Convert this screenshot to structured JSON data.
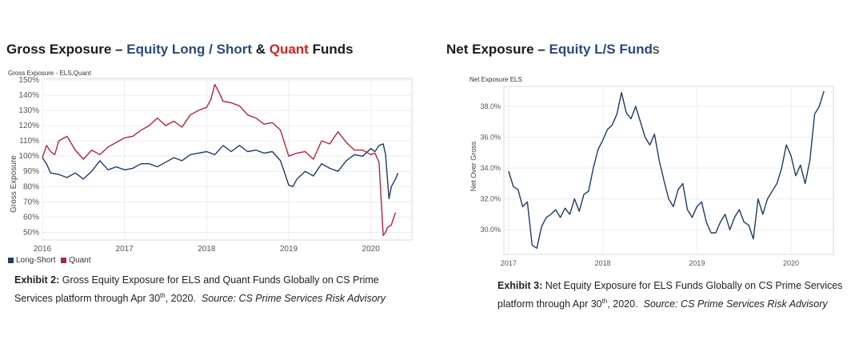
{
  "left": {
    "headline_parts": [
      "Gross Exposure",
      " – ",
      "Equity Long / Short",
      " & ",
      "Quant",
      " Funds"
    ],
    "caption": {
      "label": "Exhibit 2:",
      "text": " Gross Equity Exposure for ELS and Quant Funds Globally on CS Prime Services platform through Apr 30",
      "sup": "th",
      "text2": ", 2020.",
      "source": "Source: CS Prime Services Risk Advisory"
    }
  },
  "right": {
    "headline_parts": [
      "Net Exposure",
      " – ",
      "Equity L/S Fund",
      "s"
    ],
    "caption": {
      "label": "Exhibit 3:",
      "text": " Net Equity Exposure for ELS Funds Globally on CS Prime Services platform through Apr 30",
      "sup": "th",
      "text2": ", 2020.",
      "source": "Source: CS Prime Services Risk Advisory"
    }
  },
  "chart_data": [
    {
      "type": "line",
      "title": "Gross Exposure - ELS,Quant",
      "ylabel": "Gross Exposure",
      "xlabel": "",
      "x_ticks": [
        "2016",
        "2017",
        "2018",
        "2019",
        "2020"
      ],
      "y_ticks": [
        "50%",
        "60%",
        "70%",
        "80%",
        "90%",
        "100%",
        "110%",
        "120%",
        "130%",
        "140%",
        "150%"
      ],
      "xlim": [
        2016.0,
        2020.5
      ],
      "ylim": [
        45,
        151
      ],
      "legend_position": "bottom-left",
      "series": [
        {
          "name": "Long-Short",
          "color": "#1f3b67",
          "x": [
            2016.0,
            2016.05,
            2016.1,
            2016.2,
            2016.3,
            2016.4,
            2016.5,
            2016.6,
            2016.7,
            2016.8,
            2016.9,
            2017.0,
            2017.1,
            2017.2,
            2017.3,
            2017.4,
            2017.5,
            2017.6,
            2017.7,
            2017.8,
            2017.9,
            2018.0,
            2018.1,
            2018.2,
            2018.3,
            2018.4,
            2018.5,
            2018.6,
            2018.7,
            2018.8,
            2018.9,
            2019.0,
            2019.05,
            2019.1,
            2019.2,
            2019.3,
            2019.4,
            2019.5,
            2019.6,
            2019.7,
            2019.8,
            2019.9,
            2020.0,
            2020.05,
            2020.1,
            2020.15,
            2020.18,
            2020.22,
            2020.25,
            2020.3,
            2020.33
          ],
          "y": [
            99,
            95,
            89,
            88,
            86,
            89,
            85,
            90,
            97,
            91,
            93,
            91,
            92,
            95,
            95,
            93,
            96,
            99,
            97,
            101,
            102,
            103,
            101,
            107,
            103,
            107,
            103,
            104,
            102,
            103,
            97,
            81,
            80,
            85,
            90,
            87,
            95,
            92,
            90,
            97,
            101,
            100,
            105,
            103,
            107,
            108,
            101,
            72,
            80,
            85,
            89
          ]
        },
        {
          "name": "Quant",
          "color": "#b3243a",
          "x": [
            2016.0,
            2016.05,
            2016.1,
            2016.15,
            2016.2,
            2016.3,
            2016.4,
            2016.5,
            2016.6,
            2016.7,
            2016.8,
            2016.9,
            2017.0,
            2017.1,
            2017.2,
            2017.3,
            2017.4,
            2017.5,
            2017.6,
            2017.7,
            2017.8,
            2017.9,
            2018.0,
            2018.05,
            2018.1,
            2018.15,
            2018.2,
            2018.3,
            2018.4,
            2018.5,
            2018.6,
            2018.7,
            2018.8,
            2018.9,
            2019.0,
            2019.1,
            2019.2,
            2019.3,
            2019.4,
            2019.5,
            2019.6,
            2019.7,
            2019.8,
            2019.9,
            2020.0,
            2020.05,
            2020.1,
            2020.15,
            2020.18,
            2020.2,
            2020.25,
            2020.3
          ],
          "y": [
            99,
            107,
            103,
            101,
            110,
            113,
            104,
            98,
            104,
            101,
            106,
            109,
            112,
            113,
            117,
            120,
            125,
            120,
            123,
            119,
            127,
            130,
            132,
            137,
            147,
            142,
            136,
            135,
            133,
            127,
            125,
            121,
            122,
            117,
            100,
            102,
            103,
            98,
            110,
            108,
            116,
            109,
            104,
            104,
            101,
            102,
            96,
            48,
            50,
            53,
            55,
            63
          ]
        }
      ]
    },
    {
      "type": "line",
      "title": "Net Exposure ELS",
      "ylabel": "Net Over Gross",
      "xlabel": "",
      "x_ticks": [
        "2017",
        "2018",
        "2019",
        "2020"
      ],
      "y_ticks": [
        "30.0%",
        "32.0%",
        "34.0%",
        "36.0%",
        "38.0%"
      ],
      "xlim": [
        2016.95,
        2020.45
      ],
      "ylim": [
        28.4,
        39.3
      ],
      "series": [
        {
          "name": "",
          "color": "#1f3b67",
          "x": [
            2017.0,
            2017.05,
            2017.1,
            2017.15,
            2017.2,
            2017.25,
            2017.3,
            2017.35,
            2017.4,
            2017.45,
            2017.5,
            2017.55,
            2017.6,
            2017.65,
            2017.7,
            2017.75,
            2017.8,
            2017.85,
            2017.9,
            2017.95,
            2018.0,
            2018.05,
            2018.1,
            2018.15,
            2018.2,
            2018.25,
            2018.3,
            2018.35,
            2018.4,
            2018.45,
            2018.5,
            2018.55,
            2018.6,
            2018.65,
            2018.7,
            2018.75,
            2018.8,
            2018.85,
            2018.9,
            2018.95,
            2019.0,
            2019.05,
            2019.1,
            2019.15,
            2019.2,
            2019.25,
            2019.3,
            2019.35,
            2019.4,
            2019.45,
            2019.5,
            2019.55,
            2019.6,
            2019.65,
            2019.7,
            2019.75,
            2019.8,
            2019.85,
            2019.9,
            2019.95,
            2020.0,
            2020.05,
            2020.1,
            2020.15,
            2020.2,
            2020.25,
            2020.3,
            2020.35
          ],
          "y": [
            33.8,
            32.8,
            32.6,
            31.5,
            31.8,
            29.0,
            28.8,
            30.2,
            30.8,
            31.0,
            31.3,
            30.8,
            31.4,
            31.0,
            32.0,
            31.2,
            32.3,
            32.5,
            34.0,
            35.2,
            35.8,
            36.5,
            36.8,
            37.5,
            38.9,
            37.6,
            37.2,
            38.0,
            37.0,
            36.0,
            35.5,
            36.2,
            34.5,
            33.2,
            32.0,
            31.5,
            32.6,
            33.0,
            31.3,
            30.8,
            31.5,
            31.8,
            30.5,
            29.8,
            29.8,
            30.5,
            31.0,
            30.0,
            30.8,
            31.3,
            30.5,
            30.3,
            29.4,
            32.0,
            31.0,
            32.0,
            32.5,
            33.0,
            34.0,
            35.5,
            34.8,
            33.5,
            34.2,
            33.0,
            34.5,
            37.5,
            38.0,
            39.0
          ]
        }
      ]
    }
  ]
}
